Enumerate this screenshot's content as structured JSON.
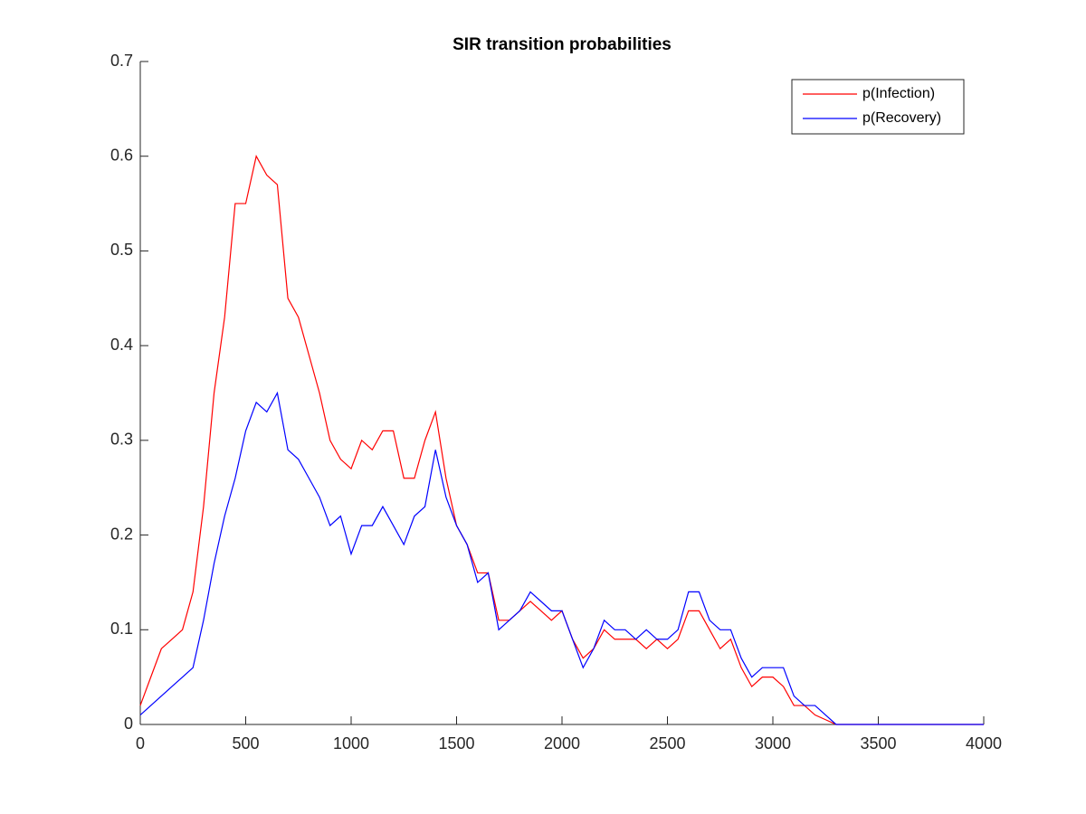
{
  "chart_data": {
    "type": "line",
    "title": "SIR transition probabilities",
    "x": [
      0,
      50,
      100,
      150,
      200,
      250,
      300,
      350,
      400,
      450,
      500,
      550,
      600,
      650,
      700,
      750,
      800,
      850,
      900,
      950,
      1000,
      1050,
      1100,
      1150,
      1200,
      1250,
      1300,
      1350,
      1400,
      1450,
      1500,
      1550,
      1600,
      1650,
      1700,
      1750,
      1800,
      1850,
      1900,
      1950,
      2000,
      2050,
      2100,
      2150,
      2200,
      2250,
      2300,
      2350,
      2400,
      2450,
      2500,
      2550,
      2600,
      2650,
      2700,
      2750,
      2800,
      2850,
      2900,
      2950,
      3000,
      3050,
      3100,
      3150,
      3200,
      3250,
      3300,
      3350,
      3400,
      3450,
      3500,
      3550,
      3600,
      3650,
      3700,
      3750,
      3800,
      3850,
      3900,
      3950,
      4000
    ],
    "series": [
      {
        "name": "p(Infection)",
        "color": "#ff0000",
        "values": [
          0.02,
          0.05,
          0.08,
          0.09,
          0.1,
          0.14,
          0.23,
          0.35,
          0.43,
          0.55,
          0.55,
          0.6,
          0.58,
          0.57,
          0.45,
          0.43,
          0.39,
          0.35,
          0.3,
          0.28,
          0.27,
          0.3,
          0.29,
          0.31,
          0.31,
          0.26,
          0.26,
          0.3,
          0.33,
          0.26,
          0.21,
          0.19,
          0.16,
          0.16,
          0.11,
          0.11,
          0.12,
          0.13,
          0.12,
          0.11,
          0.12,
          0.09,
          0.07,
          0.08,
          0.1,
          0.09,
          0.09,
          0.09,
          0.08,
          0.09,
          0.08,
          0.09,
          0.12,
          0.12,
          0.1,
          0.08,
          0.09,
          0.06,
          0.04,
          0.05,
          0.05,
          0.04,
          0.02,
          0.02,
          0.01,
          0.005,
          0,
          0,
          0,
          0,
          0,
          0,
          0,
          0,
          0,
          0,
          0,
          0,
          0,
          0,
          0
        ]
      },
      {
        "name": "p(Recovery)",
        "color": "#0000ff",
        "values": [
          0.01,
          0.02,
          0.03,
          0.04,
          0.05,
          0.06,
          0.11,
          0.17,
          0.22,
          0.26,
          0.31,
          0.34,
          0.33,
          0.35,
          0.29,
          0.28,
          0.26,
          0.24,
          0.21,
          0.22,
          0.18,
          0.21,
          0.21,
          0.23,
          0.21,
          0.19,
          0.22,
          0.23,
          0.29,
          0.24,
          0.21,
          0.19,
          0.15,
          0.16,
          0.1,
          0.11,
          0.12,
          0.14,
          0.13,
          0.12,
          0.12,
          0.09,
          0.06,
          0.08,
          0.11,
          0.1,
          0.1,
          0.09,
          0.1,
          0.09,
          0.09,
          0.1,
          0.14,
          0.14,
          0.11,
          0.1,
          0.1,
          0.07,
          0.05,
          0.06,
          0.06,
          0.06,
          0.03,
          0.02,
          0.02,
          0.01,
          0,
          0,
          0,
          0,
          0,
          0,
          0,
          0,
          0,
          0,
          0,
          0,
          0,
          0,
          0
        ]
      }
    ],
    "xlim": [
      0,
      4000
    ],
    "xticks": [
      0,
      500,
      1000,
      1500,
      2000,
      2500,
      3000,
      3500,
      4000
    ],
    "ylim": [
      0,
      0.7
    ],
    "yticks": [
      0,
      0.1,
      0.2,
      0.3,
      0.4,
      0.5,
      0.6,
      0.7
    ],
    "legend": "top-right"
  }
}
